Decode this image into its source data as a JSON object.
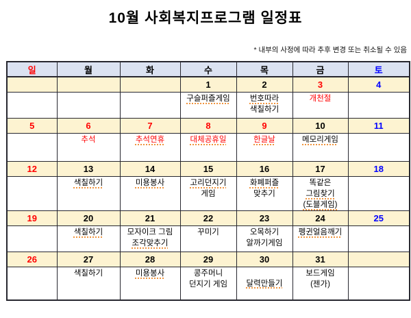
{
  "page": {
    "title": "10월  사회복지프로그램  일정표",
    "note": "* 내부의 사정에 따라 추후 변경 또는 취소될 수 있음"
  },
  "colors": {
    "red": "#ff0000",
    "blue": "#0000ff",
    "header_bg": "#dbe2f1",
    "date_bg": "#fdf3d1",
    "border": "#26262e",
    "underline": "#f0933c"
  },
  "calendar": {
    "day_headers": [
      {
        "label": "일",
        "color": "red"
      },
      {
        "label": "월",
        "color": "black"
      },
      {
        "label": "화",
        "color": "black"
      },
      {
        "label": "수",
        "color": "black"
      },
      {
        "label": "목",
        "color": "black"
      },
      {
        "label": "금",
        "color": "black"
      },
      {
        "label": "토",
        "color": "blue"
      }
    ],
    "weeks": [
      {
        "dates": [
          {
            "day": "",
            "color": "black"
          },
          {
            "day": "",
            "color": "black"
          },
          {
            "day": "",
            "color": "black"
          },
          {
            "day": "1",
            "color": "black"
          },
          {
            "day": "2",
            "color": "black"
          },
          {
            "day": "3",
            "color": "red"
          },
          {
            "day": "4",
            "color": "blue"
          }
        ],
        "events": [
          null,
          null,
          null,
          {
            "lines": [
              {
                "text": "구슬퍼즐게임",
                "underline": true
              }
            ]
          },
          {
            "lines": [
              {
                "text": "번호따라",
                "underline": true
              },
              {
                "text": "색칠하기"
              }
            ]
          },
          {
            "lines": [
              {
                "text": "개천절",
                "color": "red"
              }
            ]
          },
          null
        ]
      },
      {
        "dates": [
          {
            "day": "5",
            "color": "red"
          },
          {
            "day": "6",
            "color": "red"
          },
          {
            "day": "7",
            "color": "red"
          },
          {
            "day": "8",
            "color": "red"
          },
          {
            "day": "9",
            "color": "red"
          },
          {
            "day": "10",
            "color": "black"
          },
          {
            "day": "11",
            "color": "blue"
          }
        ],
        "events": [
          null,
          {
            "lines": [
              {
                "text": "추석",
                "color": "red"
              }
            ]
          },
          {
            "lines": [
              {
                "text": "추석연휴",
                "color": "red",
                "underline": true
              }
            ]
          },
          {
            "lines": [
              {
                "text": "대체공휴일",
                "color": "red",
                "underline": true
              }
            ]
          },
          {
            "lines": [
              {
                "text": "한글날",
                "color": "red",
                "underline": true
              }
            ]
          },
          {
            "lines": [
              {
                "text": "메모리게임",
                "underline": true
              }
            ]
          },
          null
        ]
      },
      {
        "dates": [
          {
            "day": "12",
            "color": "red"
          },
          {
            "day": "13",
            "color": "black"
          },
          {
            "day": "14",
            "color": "black"
          },
          {
            "day": "15",
            "color": "black"
          },
          {
            "day": "16",
            "color": "black"
          },
          {
            "day": "17",
            "color": "black"
          },
          {
            "day": "18",
            "color": "blue"
          }
        ],
        "events": [
          null,
          {
            "lines": [
              {
                "text": "색칠하기",
                "underline": true
              }
            ]
          },
          {
            "lines": [
              {
                "text": "미용봉사",
                "underline": true
              }
            ]
          },
          {
            "lines": [
              {
                "text": "고리던지기",
                "underline": true
              },
              {
                "text": "게임"
              }
            ]
          },
          {
            "lines": [
              {
                "text": "화폐퍼즐",
                "underline": true
              },
              {
                "text": "맞추기"
              }
            ]
          },
          {
            "lines": [
              {
                "text": "똑같은"
              },
              {
                "text": "그림찾기",
                "underline": true
              },
              {
                "text": "(도블게임)",
                "underline": true
              }
            ]
          },
          null
        ]
      },
      {
        "dates": [
          {
            "day": "19",
            "color": "red"
          },
          {
            "day": "20",
            "color": "black"
          },
          {
            "day": "21",
            "color": "black"
          },
          {
            "day": "22",
            "color": "black"
          },
          {
            "day": "23",
            "color": "black"
          },
          {
            "day": "24",
            "color": "black"
          },
          {
            "day": "25",
            "color": "blue"
          }
        ],
        "events": [
          null,
          {
            "lines": [
              {
                "text": "색칠하기",
                "underline": true
              }
            ]
          },
          {
            "lines": [
              {
                "text": "모자이크 그림"
              },
              {
                "text": "조각맞추기",
                "underline": true
              }
            ]
          },
          {
            "lines": [
              {
                "text": "꾸미기"
              }
            ]
          },
          {
            "lines": [
              {
                "text": "오목하기"
              },
              {
                "text": "알까기게임"
              }
            ]
          },
          {
            "lines": [
              {
                "text": "펭귄얼음깨기",
                "underline": true
              }
            ]
          },
          null
        ]
      },
      {
        "dates": [
          {
            "day": "26",
            "color": "red"
          },
          {
            "day": "27",
            "color": "black"
          },
          {
            "day": "28",
            "color": "black"
          },
          {
            "day": "29",
            "color": "black"
          },
          {
            "day": "30",
            "color": "black"
          },
          {
            "day": "31",
            "color": "black"
          },
          {
            "day": "",
            "color": "black"
          }
        ],
        "events": [
          null,
          {
            "lines": [
              {
                "text": "색칠하기"
              }
            ]
          },
          {
            "lines": [
              {
                "text": "미용봉사",
                "underline": true
              }
            ]
          },
          {
            "lines": [
              {
                "text": "콩주머니"
              },
              {
                "text": "던지기 게임"
              }
            ]
          },
          {
            "lines": [
              {
                "text": "달력만들기",
                "underline": true
              }
            ],
            "valign": "middle"
          },
          {
            "lines": [
              {
                "text": "보드게임"
              },
              {
                "text": "(젠가)"
              }
            ]
          },
          null
        ]
      }
    ]
  }
}
